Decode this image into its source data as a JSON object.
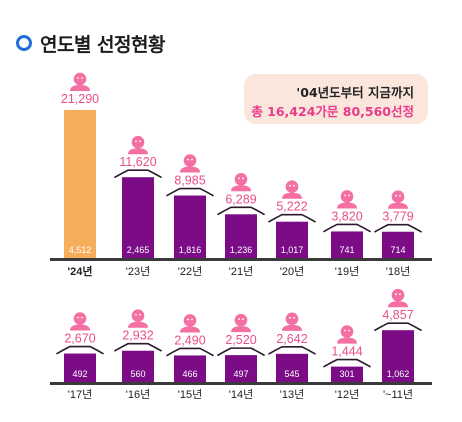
{
  "title": "연도별 선정현황",
  "summary": {
    "line1": "'04년도부터 지금까지",
    "line2": "총 16,424가문 80,560선정"
  },
  "colors": {
    "bar_current": "#f7ae5a",
    "bar": "#7b0c86",
    "top_label": "#e94f8a",
    "icon": "#f46fa2",
    "title_dot": "#1f6fd1",
    "summary_bg": "#fbe6dc"
  },
  "chart_data": [
    {
      "type": "bar",
      "categories": [
        "'24년",
        "'23년",
        "'22년",
        "'21년",
        "'20년",
        "'19년",
        "'18년"
      ],
      "series": [
        {
          "values": [
            21290,
            11620,
            8985,
            6289,
            5222,
            3820,
            3779
          ]
        },
        {
          "values": [
            4512,
            2465,
            1816,
            1236,
            1017,
            741,
            714
          ]
        }
      ],
      "top_labels": [
        "21,290",
        "11,620",
        "8,985",
        "6,289",
        "5,222",
        "3,820",
        "3,779"
      ],
      "bar_labels": [
        "4,512",
        "2,465",
        "1,816",
        "1,236",
        "1,017",
        "741",
        "714"
      ],
      "highlight_index": 0
    },
    {
      "type": "bar",
      "categories": [
        "'17년",
        "'16년",
        "'15년",
        "'14년",
        "'13년",
        "'12년",
        "'~11년"
      ],
      "series": [
        {
          "values": [
            2670,
            2932,
            2490,
            2520,
            2642,
            1444,
            4857
          ]
        },
        {
          "values": [
            492,
            560,
            466,
            497,
            545,
            301,
            1062
          ]
        }
      ],
      "top_labels": [
        "2,670",
        "2,932",
        "2,490",
        "2,520",
        "2,642",
        "1,444",
        "4,857"
      ],
      "bar_labels": [
        "492",
        "560",
        "466",
        "497",
        "545",
        "301",
        "1,062"
      ],
      "highlight_index": -1
    }
  ]
}
